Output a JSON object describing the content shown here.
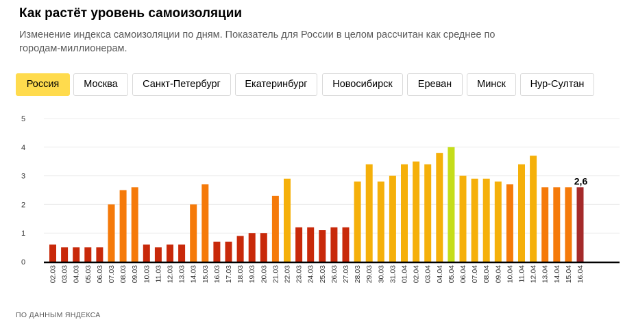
{
  "header": {
    "title": "Как растёт уровень самоизоляции",
    "subtitle": "Изменение индекса самоизоляции по дням. Показатель для России в целом рассчитан как среднее по городам-миллионерам."
  },
  "tabs": [
    {
      "label": "Россия",
      "active": true
    },
    {
      "label": "Москва",
      "active": false
    },
    {
      "label": "Санкт-Петербург",
      "active": false
    },
    {
      "label": "Екатеринбург",
      "active": false
    },
    {
      "label": "Новосибирск",
      "active": false
    },
    {
      "label": "Ереван",
      "active": false
    },
    {
      "label": "Минск",
      "active": false
    },
    {
      "label": "Нур-Султан",
      "active": false
    }
  ],
  "footer": {
    "source": "ПО ДАННЫМ ЯНДЕКСА"
  },
  "chart_data": {
    "type": "bar",
    "categories": [
      "02.03",
      "03.03",
      "04.03",
      "05.03",
      "06.03",
      "07.03",
      "08.03",
      "09.03",
      "10.03",
      "11.03",
      "12.03",
      "13.03",
      "14.03",
      "15.03",
      "16.03",
      "17.03",
      "18.03",
      "19.03",
      "20.03",
      "21.03",
      "22.03",
      "23.03",
      "24.03",
      "25.03",
      "26.03",
      "27.03",
      "28.03",
      "29.03",
      "30.03",
      "31.03",
      "01.04",
      "02.04",
      "03.04",
      "04.04",
      "05.04",
      "06.04",
      "07.04",
      "08.04",
      "09.04",
      "10.04",
      "11.04",
      "12.04",
      "13.04",
      "14.04",
      "15.04",
      "16.04"
    ],
    "values": [
      0.6,
      0.5,
      0.5,
      0.5,
      0.5,
      2.0,
      2.5,
      2.6,
      0.6,
      0.5,
      0.6,
      0.6,
      2.0,
      2.7,
      0.7,
      0.7,
      0.9,
      1.0,
      1.0,
      2.3,
      2.9,
      1.2,
      1.2,
      1.1,
      1.2,
      1.2,
      2.8,
      3.4,
      2.8,
      3.0,
      3.4,
      3.5,
      3.4,
      3.8,
      4.0,
      3.0,
      2.9,
      2.9,
      2.8,
      2.7,
      3.4,
      3.7,
      2.6,
      2.6,
      2.6,
      2.6
    ],
    "ylim": [
      0,
      5
    ],
    "yticks": [
      "0",
      "1",
      "2",
      "3",
      "4",
      "5"
    ],
    "grid": true,
    "highlight": {
      "index": 45,
      "label": "2,6",
      "color": "#a52a2a"
    },
    "colors": {
      "low": "#c8290a",
      "mid": "#f57a0a",
      "high": "#f5b00a",
      "peak": "#c5dd1a",
      "highlight": "#a52a2a",
      "axis": "#000000",
      "grid": "#ececec"
    }
  }
}
